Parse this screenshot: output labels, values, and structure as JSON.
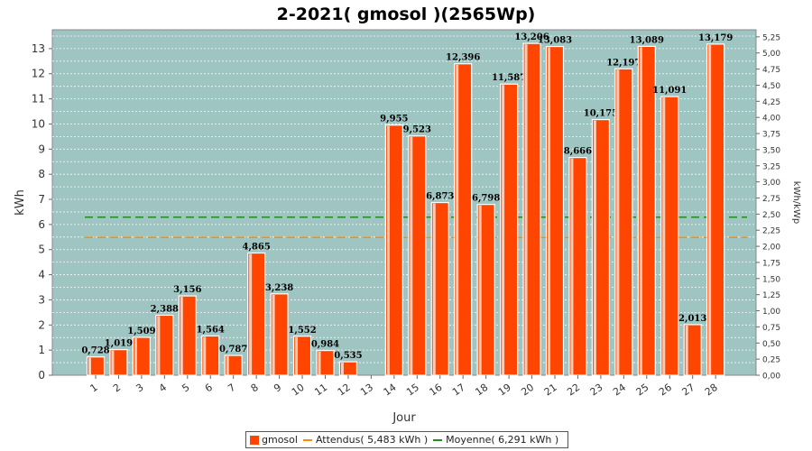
{
  "chart_data": {
    "type": "bar",
    "title": "2-2021( gmosol )(2565Wp)",
    "xlabel": "Jour",
    "ylabel": "kWh",
    "y2label": "kWh/kWp",
    "ylim": [
      0,
      13.75
    ],
    "y2lim": [
      0,
      5.36
    ],
    "yticks": [
      "0",
      "1",
      "2",
      "3",
      "4",
      "5",
      "6",
      "7",
      "8",
      "9",
      "10",
      "11",
      "12",
      "13"
    ],
    "y2ticks": [
      "0,00",
      "0,25",
      "0,50",
      "0,75",
      "1,00",
      "1,25",
      "1,50",
      "1,75",
      "2,00",
      "2,25",
      "2,50",
      "2,75",
      "3,00",
      "3,25",
      "3,50",
      "3,75",
      "4,00",
      "4,25",
      "4,50",
      "4,75",
      "5,00",
      "5,25"
    ],
    "categories": [
      "1",
      "2",
      "3",
      "4",
      "5",
      "6",
      "7",
      "8",
      "9",
      "10",
      "11",
      "12",
      "13",
      "14",
      "15",
      "16",
      "17",
      "18",
      "19",
      "20",
      "21",
      "22",
      "23",
      "24",
      "25",
      "26",
      "27",
      "28"
    ],
    "series": [
      {
        "name": "gmosol",
        "color": "#ff4500",
        "values": [
          0.728,
          1.019,
          1.509,
          2.388,
          3.156,
          1.564,
          0.787,
          4.865,
          3.238,
          1.552,
          0.984,
          0.535,
          0,
          9.955,
          9.523,
          6.873,
          12.396,
          6.798,
          11.587,
          13.206,
          13.083,
          8.666,
          10.175,
          12.197,
          13.089,
          11.091,
          2.013,
          13.179
        ],
        "labels": [
          "0,728",
          "1,019",
          "1,509",
          "2,388",
          "3,156",
          "1,564",
          "0,787",
          "4,865",
          "3,238",
          "1,552",
          "0,984",
          "0,535",
          "",
          "9,955",
          "9,523",
          "6,873",
          "12,396",
          "6,798",
          "11,587",
          "13,206",
          "13,083",
          "8,666",
          "10,175",
          "12,197",
          "13,089",
          "11,091",
          "2,013",
          "13,179"
        ]
      }
    ],
    "reference_lines": [
      {
        "name": "Attendus( 5,483 kWh )",
        "value": 5.483,
        "color": "#ff8c00"
      },
      {
        "name": "Moyenne( 6,291 kWh )",
        "value": 6.291,
        "color": "#228b22"
      }
    ],
    "plot_background": "#9fc5c3",
    "grid": true,
    "legend_position": "bottom"
  }
}
